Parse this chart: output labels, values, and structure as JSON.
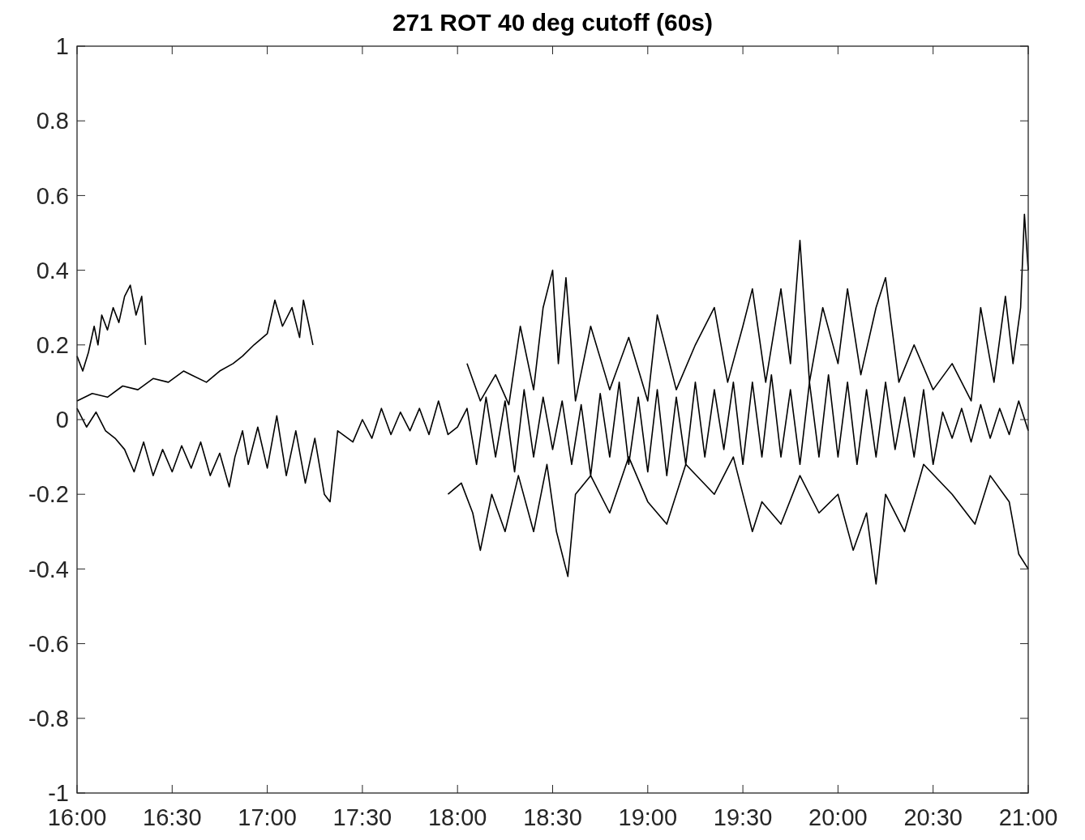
{
  "chart_data": {
    "type": "line",
    "title": "271 ROT 40 deg cutoff (60s)",
    "xlim": [
      16,
      21
    ],
    "ylim": [
      -1,
      1
    ],
    "xticks": [
      {
        "value": 16,
        "label": "16:00"
      },
      {
        "value": 16.5,
        "label": "16:30"
      },
      {
        "value": 17,
        "label": "17:00"
      },
      {
        "value": 17.5,
        "label": "17:30"
      },
      {
        "value": 18,
        "label": "18:00"
      },
      {
        "value": 18.5,
        "label": "18:30"
      },
      {
        "value": 19,
        "label": "19:00"
      },
      {
        "value": 19.5,
        "label": "19:30"
      },
      {
        "value": 20,
        "label": "20:00"
      },
      {
        "value": 20.5,
        "label": "20:30"
      },
      {
        "value": 21,
        "label": "21:00"
      }
    ],
    "yticks": [
      -1,
      -0.8,
      -0.6,
      -0.4,
      -0.2,
      0,
      0.2,
      0.4,
      0.6,
      0.8,
      1
    ],
    "grid": false,
    "line_style": "solid",
    "series": [
      {
        "color": "#000000",
        "x": [
          16.0,
          16.03,
          16.06,
          16.09,
          16.11,
          16.13,
          16.16,
          16.19,
          16.22,
          16.25,
          16.28,
          16.31,
          16.34,
          16.36
        ],
        "values": [
          0.17,
          0.13,
          0.18,
          0.25,
          0.2,
          0.28,
          0.24,
          0.3,
          0.26,
          0.33,
          0.36,
          0.28,
          0.33,
          0.2
        ]
      },
      {
        "color": "#000000",
        "x": [
          16.0,
          16.08,
          16.16,
          16.24,
          16.32,
          16.4,
          16.48,
          16.56,
          16.6,
          16.68,
          16.75,
          16.82,
          16.87,
          16.93,
          17.0,
          17.04,
          17.08,
          17.13,
          17.17,
          17.19,
          17.22,
          17.24
        ],
        "values": [
          0.05,
          0.07,
          0.06,
          0.09,
          0.08,
          0.11,
          0.1,
          0.13,
          0.12,
          0.1,
          0.13,
          0.15,
          0.17,
          0.2,
          0.23,
          0.32,
          0.25,
          0.3,
          0.22,
          0.32,
          0.25,
          0.2
        ]
      },
      {
        "color": "#000000",
        "x": [
          16.0,
          16.05,
          16.1,
          16.15,
          16.2,
          16.25,
          16.3,
          16.35,
          16.4,
          16.45,
          16.5,
          16.55,
          16.6,
          16.65,
          16.7,
          16.75,
          16.8,
          16.83,
          16.87,
          16.9,
          16.95,
          17.0,
          17.05,
          17.1,
          17.15,
          17.2,
          17.25,
          17.3,
          17.33,
          17.37,
          17.45,
          17.5,
          17.55,
          17.6,
          17.65,
          17.7,
          17.75,
          17.8,
          17.85,
          17.9,
          17.95,
          18.0,
          18.05,
          18.1,
          18.15,
          18.2,
          18.25,
          18.3,
          18.35,
          18.4,
          18.45,
          18.5,
          18.55,
          18.6,
          18.65,
          18.7,
          18.75,
          18.8,
          18.85,
          18.9,
          18.95,
          19.0,
          19.05,
          19.1,
          19.15,
          19.2,
          19.25,
          19.3,
          19.35,
          19.4,
          19.45,
          19.5,
          19.55,
          19.6,
          19.65,
          19.7,
          19.75,
          19.8,
          19.85,
          19.9,
          19.95,
          20.0,
          20.05,
          20.1,
          20.15,
          20.2,
          20.25,
          20.3,
          20.35,
          20.4,
          20.45,
          20.5,
          20.55,
          20.6,
          20.65,
          20.7,
          20.75,
          20.8,
          20.85,
          20.9,
          20.95,
          21.0
        ],
        "values": [
          0.03,
          -0.02,
          0.02,
          -0.03,
          -0.05,
          -0.08,
          -0.14,
          -0.06,
          -0.15,
          -0.08,
          -0.14,
          -0.07,
          -0.13,
          -0.06,
          -0.15,
          -0.09,
          -0.18,
          -0.1,
          -0.03,
          -0.12,
          -0.02,
          -0.13,
          0.01,
          -0.15,
          -0.03,
          -0.17,
          -0.05,
          -0.2,
          -0.22,
          -0.03,
          -0.06,
          0.0,
          -0.05,
          0.03,
          -0.04,
          0.02,
          -0.03,
          0.03,
          -0.04,
          0.05,
          -0.04,
          -0.02,
          0.03,
          -0.12,
          0.06,
          -0.1,
          0.05,
          -0.14,
          0.08,
          -0.1,
          0.06,
          -0.08,
          0.05,
          -0.12,
          0.04,
          -0.15,
          0.07,
          -0.1,
          0.1,
          -0.12,
          0.06,
          -0.14,
          0.08,
          -0.15,
          0.06,
          -0.12,
          0.1,
          -0.1,
          0.08,
          -0.08,
          0.1,
          -0.12,
          0.1,
          -0.1,
          0.12,
          -0.1,
          0.08,
          -0.12,
          0.1,
          -0.1,
          0.12,
          -0.1,
          0.1,
          -0.12,
          0.08,
          -0.1,
          0.1,
          -0.08,
          0.06,
          -0.1,
          0.08,
          -0.12,
          0.02,
          -0.05,
          0.03,
          -0.06,
          0.04,
          -0.05,
          0.03,
          -0.04,
          0.05,
          -0.03
        ]
      },
      {
        "color": "#000000",
        "x": [
          18.05,
          18.12,
          18.2,
          18.27,
          18.33,
          18.4,
          18.45,
          18.5,
          18.53,
          18.57,
          18.62,
          18.7,
          18.8,
          18.9,
          19.0,
          19.05,
          19.15,
          19.25,
          19.35,
          19.42,
          19.5,
          19.55,
          19.62,
          19.7,
          19.75,
          19.8,
          19.85,
          19.92,
          20.0,
          20.05,
          20.12,
          20.2,
          20.25,
          20.32,
          20.4,
          20.5,
          20.6,
          20.7,
          20.75,
          20.82,
          20.88,
          20.92,
          20.96,
          20.98,
          21.0
        ],
        "values": [
          0.15,
          0.05,
          0.12,
          0.04,
          0.25,
          0.08,
          0.3,
          0.4,
          0.15,
          0.38,
          0.05,
          0.25,
          0.08,
          0.22,
          0.05,
          0.28,
          0.08,
          0.2,
          0.3,
          0.1,
          0.25,
          0.35,
          0.1,
          0.35,
          0.15,
          0.48,
          0.1,
          0.3,
          0.15,
          0.35,
          0.12,
          0.3,
          0.38,
          0.1,
          0.2,
          0.08,
          0.15,
          0.05,
          0.3,
          0.1,
          0.33,
          0.15,
          0.3,
          0.55,
          0.4
        ]
      },
      {
        "color": "#000000",
        "x": [
          17.95,
          18.02,
          18.08,
          18.12,
          18.18,
          18.25,
          18.32,
          18.4,
          18.47,
          18.52,
          18.58,
          18.62,
          18.7,
          18.8,
          18.9,
          19.0,
          19.1,
          19.2,
          19.35,
          19.45,
          19.55,
          19.6,
          19.7,
          19.8,
          19.9,
          20.0,
          20.08,
          20.15,
          20.2,
          20.25,
          20.35,
          20.45,
          20.6,
          20.72,
          20.8,
          20.9,
          20.95,
          21.0
        ],
        "values": [
          -0.2,
          -0.17,
          -0.25,
          -0.35,
          -0.2,
          -0.3,
          -0.15,
          -0.3,
          -0.12,
          -0.3,
          -0.42,
          -0.2,
          -0.15,
          -0.25,
          -0.1,
          -0.22,
          -0.28,
          -0.12,
          -0.2,
          -0.1,
          -0.3,
          -0.22,
          -0.28,
          -0.15,
          -0.25,
          -0.2,
          -0.35,
          -0.25,
          -0.44,
          -0.2,
          -0.3,
          -0.12,
          -0.2,
          -0.28,
          -0.15,
          -0.22,
          -0.36,
          -0.4
        ]
      }
    ]
  }
}
